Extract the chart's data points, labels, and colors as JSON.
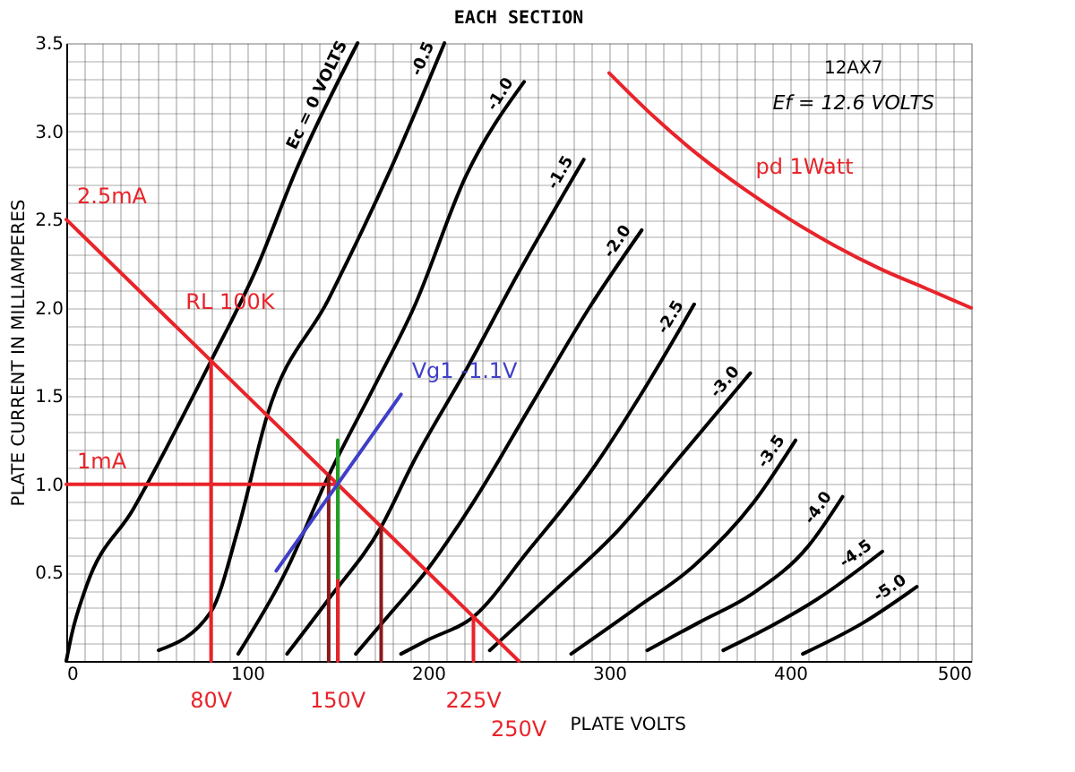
{
  "chart_data": {
    "type": "line",
    "title": "EACH SECTION",
    "xlabel": "PLATE VOLTS",
    "ylabel": "PLATE CURRENT IN MILLIAMPERES",
    "xlim": [
      0,
      500
    ],
    "ylim": [
      0,
      3.5
    ],
    "xticks": [
      0,
      {
        "value": 10,
        "label": null
      },
      {
        "value": 20,
        "label": null
      },
      {
        "value": 30,
        "label": null
      },
      {
        "value": 40,
        "label": null
      },
      {
        "value": 50,
        "label": null
      },
      {
        "value": 60,
        "label": null
      },
      {
        "value": 70,
        "label": null
      },
      {
        "value": 80,
        "label": null
      },
      {
        "value": 90,
        "label": null
      },
      100,
      {
        "value": 110,
        "label": null
      },
      {
        "value": 120,
        "label": null
      },
      {
        "value": 130,
        "label": null
      },
      {
        "value": 140,
        "label": null
      },
      {
        "value": 150,
        "label": null
      },
      {
        "value": 160,
        "label": null
      },
      {
        "value": 170,
        "label": null
      },
      {
        "value": 180,
        "label": null
      },
      {
        "value": 190,
        "label": null
      },
      200,
      {
        "value": 210,
        "label": null
      },
      {
        "value": 220,
        "label": null
      },
      {
        "value": 230,
        "label": null
      },
      {
        "value": 240,
        "label": null
      },
      {
        "value": 250,
        "label": null
      },
      {
        "value": 260,
        "label": null
      },
      {
        "value": 270,
        "label": null
      },
      {
        "value": 280,
        "label": null
      },
      {
        "value": 290,
        "label": null
      },
      300,
      {
        "value": 310,
        "label": null
      },
      {
        "value": 320,
        "label": null
      },
      {
        "value": 330,
        "label": null
      },
      {
        "value": 340,
        "label": null
      },
      {
        "value": 350,
        "label": null
      },
      {
        "value": 360,
        "label": null
      },
      {
        "value": 370,
        "label": null
      },
      {
        "value": 380,
        "label": null
      },
      {
        "value": 390,
        "label": null
      },
      400,
      {
        "value": 410,
        "label": null
      },
      {
        "value": 420,
        "label": null
      },
      {
        "value": 430,
        "label": null
      },
      {
        "value": 440,
        "label": null
      },
      {
        "value": 450,
        "label": null
      },
      {
        "value": 460,
        "label": null
      },
      {
        "value": 470,
        "label": null
      },
      {
        "value": 480,
        "label": null
      },
      {
        "value": 490,
        "label": null
      },
      500
    ],
    "yticks": [
      {
        "value": 0,
        "label": null
      },
      {
        "value": 0.1,
        "label": null
      },
      {
        "value": 0.2,
        "label": null
      },
      {
        "value": 0.3,
        "label": null
      },
      {
        "value": 0.4,
        "label": null
      },
      0.5,
      {
        "value": 0.6,
        "label": null
      },
      {
        "value": 0.7,
        "label": null
      },
      {
        "value": 0.8,
        "label": null
      },
      {
        "value": 0.9,
        "label": null
      },
      {
        "value": 1,
        "label": "1.0"
      },
      {
        "value": 1.1,
        "label": null
      },
      {
        "value": 1.2,
        "label": null
      },
      {
        "value": 1.3,
        "label": null
      },
      {
        "value": 1.4,
        "label": null
      },
      1.5,
      {
        "value": 1.6,
        "label": null
      },
      {
        "value": 1.7,
        "label": null
      },
      {
        "value": 1.8,
        "label": null
      },
      {
        "value": 1.9,
        "label": null
      },
      {
        "value": 2,
        "label": "2.0"
      },
      {
        "value": 2.1,
        "label": null
      },
      {
        "value": 2.2,
        "label": null
      },
      {
        "value": 2.3,
        "label": null
      },
      {
        "value": 2.4,
        "label": null
      },
      2.5,
      {
        "value": 2.6,
        "label": null
      },
      {
        "value": 2.7,
        "label": null
      },
      {
        "value": 2.8,
        "label": null
      },
      {
        "value": 2.9,
        "label": null
      },
      {
        "value": 3,
        "label": "3.0"
      },
      {
        "value": 3.1,
        "label": null
      },
      {
        "value": 3.2,
        "label": null
      },
      {
        "value": 3.3,
        "label": null
      },
      {
        "value": 3.4,
        "label": null
      },
      3.5
    ],
    "grid": true,
    "legend": false,
    "series": [
      {
        "name": "Ec = 0 VOLTS",
        "color": "#000000",
        "x": [
          0,
          3,
          11,
          37,
          80,
          105,
          127,
          161
        ],
        "values": [
          0,
          0.15,
          0.42,
          0.86,
          1.7,
          2.22,
          2.78,
          3.5
        ]
      },
      {
        "name": "-0.5",
        "color": "#000000",
        "x": [
          51,
          80,
          95,
          111,
          145,
          179,
          209
        ],
        "values": [
          0.06,
          0.28,
          0.75,
          1.39,
          2.05,
          2.78,
          3.5
        ]
      },
      {
        "name": "-1.0",
        "color": "#000000",
        "x": [
          95,
          121,
          145,
          170,
          192,
          221,
          253
        ],
        "values": [
          0.04,
          0.5,
          1.05,
          1.55,
          2.0,
          2.75,
          3.28
        ]
      },
      {
        "name": "-1.5",
        "color": "#000000",
        "x": [
          122,
          145,
          174,
          192,
          221,
          250,
          286
        ],
        "values": [
          0.04,
          0.35,
          0.76,
          1.13,
          1.65,
          2.2,
          2.84
        ]
      },
      {
        "name": "-2.0",
        "color": "#000000",
        "x": [
          160,
          180,
          199,
          225,
          257,
          289,
          318
        ],
        "values": [
          0.04,
          0.28,
          0.51,
          0.9,
          1.45,
          2.0,
          2.44
        ]
      },
      {
        "name": "-2.5",
        "color": "#000000",
        "x": [
          185,
          200,
          225,
          255,
          289,
          320,
          347
        ],
        "values": [
          0.04,
          0.12,
          0.25,
          0.62,
          1.06,
          1.55,
          2.02
        ]
      },
      {
        "name": "-3.0",
        "color": "#000000",
        "x": [
          234,
          270,
          305,
          337,
          378
        ],
        "values": [
          0.06,
          0.4,
          0.74,
          1.13,
          1.63
        ]
      },
      {
        "name": "-3.5",
        "color": "#000000",
        "x": [
          279,
          315,
          347,
          380,
          403
        ],
        "values": [
          0.04,
          0.3,
          0.54,
          0.9,
          1.25
        ]
      },
      {
        "name": "-4.0",
        "color": "#000000",
        "x": [
          321,
          350,
          379,
          410,
          429
        ],
        "values": [
          0.06,
          0.22,
          0.38,
          0.65,
          0.93
        ]
      },
      {
        "name": "-4.5",
        "color": "#000000",
        "x": [
          363,
          390,
          415,
          451
        ],
        "values": [
          0.06,
          0.2,
          0.35,
          0.62
        ]
      },
      {
        "name": "-5.0",
        "color": "#000000",
        "x": [
          407,
          441,
          470
        ],
        "values": [
          0.04,
          0.22,
          0.42
        ]
      },
      {
        "color": "#e8242a",
        "x": [
          0,
          60,
          250
        ],
        "values": [
          2.5,
          1.9,
          0
        ]
      },
      {
        "color": "#e8242a",
        "x": [
          300,
          325,
          350,
          375,
          400,
          425,
          450,
          475,
          500
        ],
        "values": [
          3.33,
          3.08,
          2.86,
          2.67,
          2.5,
          2.35,
          2.22,
          2.11,
          2.0
        ]
      },
      {
        "color": "#e8242a",
        "x": [
          0,
          150
        ],
        "values": [
          1,
          1
        ]
      },
      {
        "color": "#e8242a",
        "x": [
          80,
          80
        ],
        "values": [
          0,
          1.7
        ]
      },
      {
        "color": "#e8242a",
        "x": [
          150,
          150
        ],
        "values": [
          0,
          1
        ]
      },
      {
        "color": "#8b1a1a",
        "x": [
          145,
          145
        ],
        "values": [
          0,
          1.05
        ]
      },
      {
        "color": "#8b1a1a",
        "x": [
          174,
          174
        ],
        "values": [
          0,
          0.76
        ]
      },
      {
        "color": "#e8242a",
        "x": [
          225,
          225
        ],
        "values": [
          0,
          0.25
        ]
      },
      {
        "color": "#22a022",
        "x": [
          150,
          150
        ],
        "values": [
          0.47,
          1.25
        ]
      },
      {
        "color": "#3f3fc8",
        "x": [
          116,
          185
        ],
        "values": [
          0.51,
          1.51
        ]
      }
    ],
    "annotations": [
      "12AX7",
      "Ef = 12.6 VOLTS",
      {
        "text": "2.5mA",
        "x": 0,
        "y": 2.5
      },
      {
        "text": "RL 100K",
        "x": 60,
        "y": 1.9
      },
      {
        "text": "1mA",
        "x": 0,
        "y": 1
      },
      {
        "text": "Vg1 -1.1V",
        "x": 185,
        "y": 1.51
      },
      {
        "text": "pd 1Watt",
        "x": 375,
        "y": 2.67
      },
      {
        "text": "80V",
        "x": 80,
        "y": 0
      },
      {
        "text": "150V",
        "x": 150,
        "y": 0
      },
      {
        "text": "225V",
        "x": 225,
        "y": 0
      },
      {
        "text": "250V",
        "x": 250,
        "y": 0
      }
    ]
  }
}
